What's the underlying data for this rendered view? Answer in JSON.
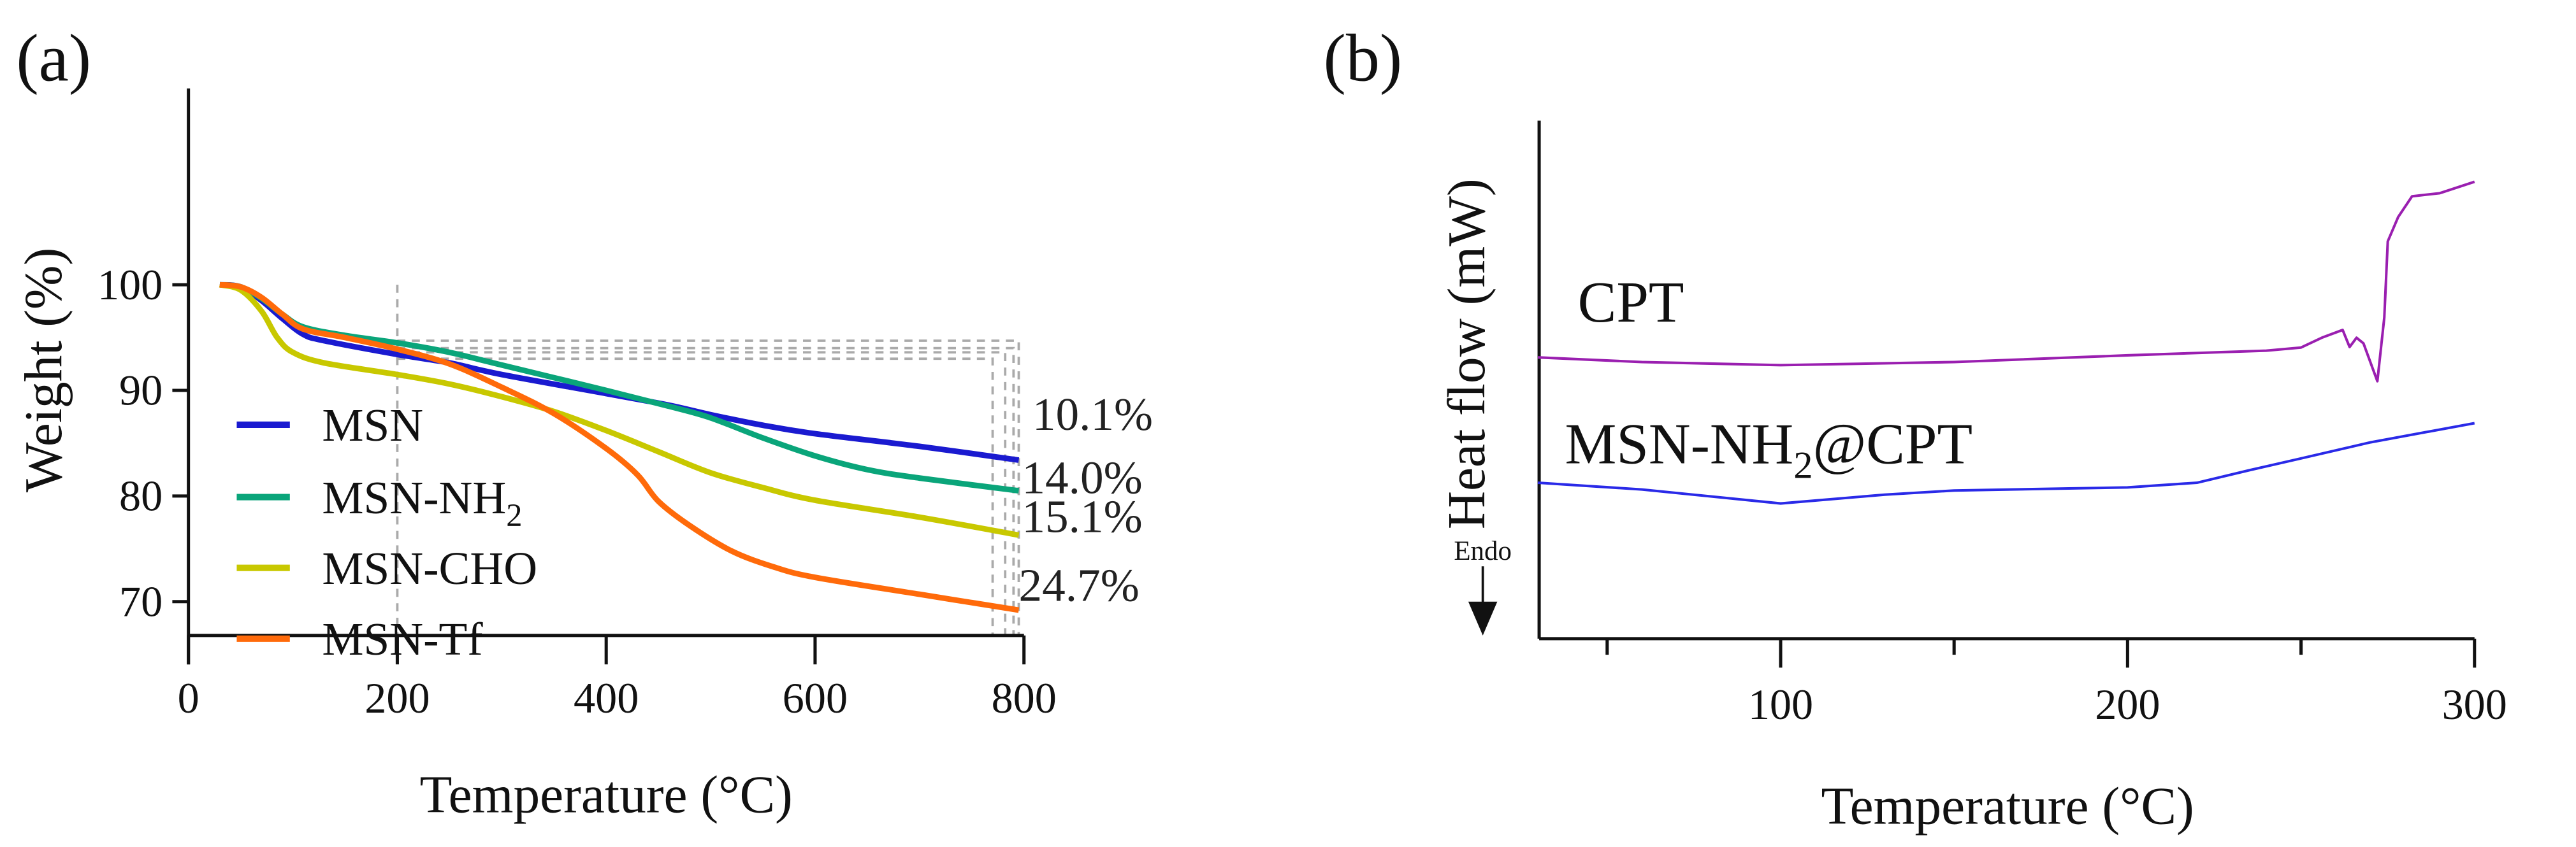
{
  "chart_data": [
    {
      "panel_label": "(a)",
      "type": "line",
      "title": "",
      "xlabel": "Temperature (°C)",
      "ylabel": "Weight (%)",
      "xlim": [
        0,
        800
      ],
      "ylim": [
        68,
        102
      ],
      "xticks": [
        0,
        200,
        400,
        600,
        800
      ],
      "yticks": [
        70,
        80,
        90,
        100
      ],
      "grid": false,
      "legend_position": "left-center",
      "series": [
        {
          "name": "MSN",
          "name_sub": "",
          "color": "#1a1ad0",
          "x": [
            30,
            50,
            70,
            90,
            110,
            130,
            200,
            250,
            300,
            400,
            460,
            500,
            550,
            600,
            700,
            795
          ],
          "y": [
            100,
            99.8,
            98.5,
            96.8,
            95.3,
            94.7,
            93.4,
            92.6,
            91.5,
            89.7,
            88.6,
            87.7,
            86.7,
            85.9,
            84.7,
            83.4
          ]
        },
        {
          "name": "MSN-NH",
          "name_sub": "2",
          "color": "#0aa57a",
          "x": [
            30,
            50,
            70,
            90,
            110,
            150,
            200,
            250,
            300,
            400,
            460,
            500,
            550,
            600,
            650,
            700,
            795
          ],
          "y": [
            100,
            99.8,
            98.7,
            97.2,
            96.0,
            95.2,
            94.5,
            93.6,
            92.4,
            90.0,
            88.5,
            87.4,
            85.5,
            83.8,
            82.5,
            81.7,
            80.5
          ]
        },
        {
          "name": "MSN-CHO",
          "name_sub": "",
          "color": "#c8c800",
          "x": [
            30,
            50,
            70,
            85,
            100,
            130,
            200,
            250,
            300,
            350,
            400,
            450,
            500,
            550,
            600,
            700,
            795
          ],
          "y": [
            100,
            99.5,
            97.5,
            95,
            93.6,
            92.6,
            91.5,
            90.6,
            89.4,
            88.0,
            86.2,
            84.2,
            82.2,
            80.8,
            79.6,
            78.0,
            76.3
          ]
        },
        {
          "name": "MSN-Tf",
          "name_sub": "",
          "color": "#ff6a0a",
          "x": [
            30,
            50,
            70,
            90,
            110,
            150,
            200,
            250,
            300,
            350,
            400,
            430,
            450,
            480,
            520,
            560,
            600,
            700,
            795
          ],
          "y": [
            100,
            99.8,
            98.8,
            97.2,
            95.8,
            95.0,
            93.9,
            92.5,
            90.3,
            87.8,
            84.5,
            82,
            79.5,
            77.2,
            74.8,
            73.3,
            72.3,
            70.7,
            69.2
          ]
        }
      ],
      "annotations": [
        {
          "text": "10.1%",
          "x": 808,
          "y": 87.8
        },
        {
          "text": "14.0%",
          "x": 798,
          "y": 81.8
        },
        {
          "text": "15.1%",
          "x": 798,
          "y": 78.1
        },
        {
          "text": "24.7%",
          "x": 795,
          "y": 71.6
        }
      ],
      "reference_lines": {
        "vertical_x": 200,
        "horizontal_y": [
          94.7,
          94.0,
          93.6,
          93.0
        ],
        "end_x": [
          795,
          790,
          782,
          770
        ]
      }
    },
    {
      "panel_label": "(b)",
      "type": "line",
      "title": "",
      "xlabel": "Temperature (°C)",
      "ylabel": "Heat flow (mW)",
      "xlim": [
        30,
        300
      ],
      "ylim": [
        0,
        100
      ],
      "xticks": [
        100,
        200,
        300
      ],
      "minor_xticks": [
        50,
        150,
        250
      ],
      "grid": false,
      "endo_label": "Endo",
      "series": [
        {
          "name": "CPT",
          "name_sub": "",
          "name_after": "",
          "color": "#9a1fb0",
          "x": [
            30,
            60,
            100,
            150,
            200,
            240,
            250,
            256,
            262,
            264,
            266,
            268,
            272,
            274,
            275,
            278,
            282,
            290,
            300
          ],
          "y": [
            54.3,
            53.4,
            52.8,
            53.4,
            54.7,
            55.6,
            56.2,
            58.1,
            59.6,
            56.3,
            58.1,
            57.0,
            49.7,
            62,
            76.7,
            81.4,
            85.4,
            86.0,
            88.2
          ]
        },
        {
          "name": "MSN-NH",
          "name_sub": "2",
          "name_after": "@CPT",
          "color": "#2a2ae8",
          "x": [
            30,
            60,
            100,
            130,
            150,
            200,
            220,
            235,
            250,
            270,
            300
          ],
          "y": [
            30.1,
            28.8,
            26.1,
            27.8,
            28.6,
            29.2,
            30.1,
            32.5,
            34.8,
            37.9,
            41.6
          ]
        }
      ]
    }
  ]
}
